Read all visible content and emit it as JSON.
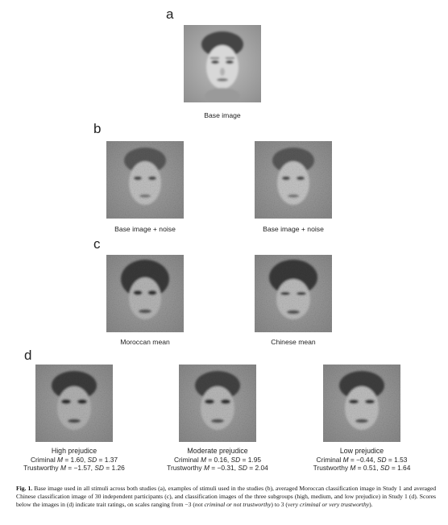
{
  "panels": {
    "a": {
      "letter": "a",
      "caption": "Base image"
    },
    "b": {
      "letter": "b",
      "captions": [
        "Base image + noise",
        "Base image + noise"
      ]
    },
    "c": {
      "letter": "c",
      "captions": [
        "Moroccan mean",
        "Chinese mean"
      ]
    },
    "d": {
      "letter": "d",
      "groups": [
        {
          "title": "High prejudice",
          "criminal_label": "Criminal ",
          "criminal_m": "1.60",
          "criminal_sd": "1.37",
          "trust_label": "Trustworthy ",
          "trust_m": "−1.57",
          "trust_sd": "1.26"
        },
        {
          "title": "Moderate prejudice",
          "criminal_label": "Criminal ",
          "criminal_m": "0.16",
          "criminal_sd": "1.95",
          "trust_label": "Trustworthy ",
          "trust_m": "−0.31",
          "trust_sd": "2.04"
        },
        {
          "title": "Low prejudice",
          "criminal_label": "Criminal ",
          "criminal_m": "−0.44",
          "criminal_sd": "1.53",
          "trust_label": "Trustworthy ",
          "trust_m": "0.51",
          "trust_sd": "1.64"
        }
      ]
    }
  },
  "stat_symbols": {
    "m": "M",
    "sd": "SD",
    "eq": " = ",
    "sep": ", "
  },
  "figure_caption": {
    "label": "Fig. 1.",
    "text_1": " Base image used in all stimuli across both studies (a), examples of stimuli used in the studies (b), averaged Moroccan classification image in Study 1 and averaged Chinese classification image of 30 independent participants (c), and classification images of the three subgroups (high, medium, and low prejudice) in Study 1 (d). Scores below the images in (d) indicate trait ratings, on scales ranging from −3 (",
    "italic_1": "not criminal or not trustworthy",
    "text_2": ") to 3 (",
    "italic_2": "very criminal or very trustworthy",
    "text_3": ")."
  }
}
